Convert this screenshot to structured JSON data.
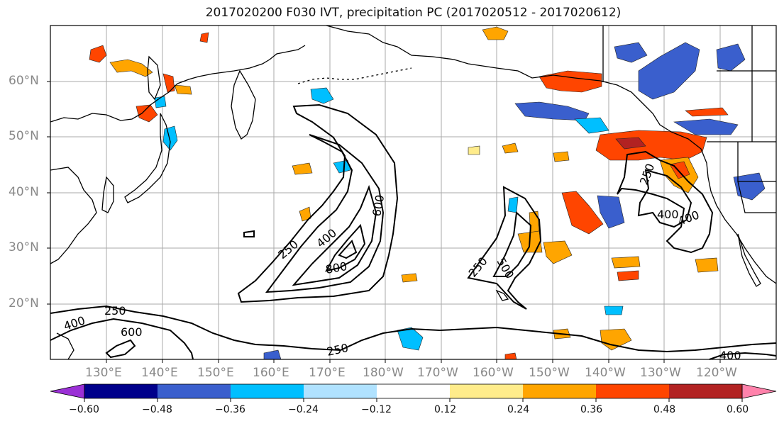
{
  "title": "2017020200 F030 IVT, precipitation PC (2017020512 - 2017020612)",
  "lat_labels": [
    "60°N",
    "50°N",
    "40°N",
    "30°N",
    "20°N"
  ],
  "lon_labels": [
    "130°E",
    "140°E",
    "150°E",
    "160°E",
    "170°E",
    "180°W",
    "170°W",
    "160°W",
    "150°W",
    "140°W",
    "130°W",
    "120°W"
  ],
  "contour_labels": [
    {
      "name": "ivt-250-japan-sea",
      "text": "250"
    },
    {
      "name": "ivt-400-west",
      "text": "400"
    },
    {
      "name": "ivt-600-west",
      "text": "600"
    },
    {
      "name": "ivt-250-central",
      "text": "250"
    },
    {
      "name": "ivt-400-central",
      "text": "400"
    },
    {
      "name": "ivt-600-central",
      "text": "600"
    },
    {
      "name": "ivt-800-central",
      "text": "800"
    },
    {
      "name": "ivt-250-east",
      "text": "250"
    },
    {
      "name": "ivt-500-east",
      "text": "500"
    },
    {
      "name": "ivt-250-south",
      "text": "250"
    },
    {
      "name": "ivt-250-coast",
      "text": "250"
    },
    {
      "name": "ivt-400-coast-a",
      "text": "400"
    },
    {
      "name": "ivt-400-coast-b",
      "text": "400"
    },
    {
      "name": "ivt-400-southeast",
      "text": "400"
    }
  ],
  "colorbar": {
    "colors": [
      "#9b30d6",
      "#00008b",
      "#3a5fcd",
      "#00bfff",
      "#b0e2ff",
      "#ffffff",
      "#ffec8b",
      "#ffa500",
      "#ff4500",
      "#b22222",
      "#ff82ab"
    ],
    "tick_labels": [
      "−0.60",
      "−0.48",
      "−0.36",
      "−0.24",
      "−0.12",
      "0.12",
      "0.24",
      "0.36",
      "0.48",
      "0.60"
    ]
  }
}
